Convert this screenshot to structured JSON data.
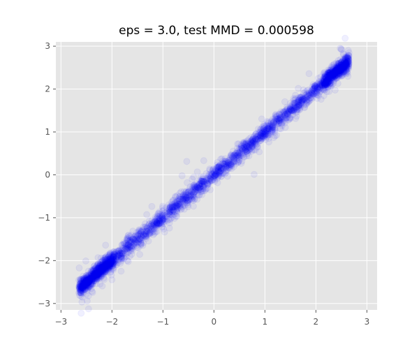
{
  "chart_data": {
    "type": "scatter",
    "title": "eps = 3.0, test MMD = 0.000598",
    "xlabel": "",
    "ylabel": "",
    "xlim": [
      -3.1,
      3.2
    ],
    "ylim": [
      -3.15,
      3.1
    ],
    "xticks": [
      -3,
      -2,
      -1,
      0,
      1,
      2,
      3
    ],
    "yticks": [
      -3,
      -2,
      -1,
      0,
      1,
      2,
      3
    ],
    "xtick_labels": [
      "−3",
      "−2",
      "−1",
      "0",
      "1",
      "2",
      "3"
    ],
    "ytick_labels": [
      "−3",
      "−2",
      "−1",
      "0",
      "1",
      "2",
      "3"
    ],
    "grid": true,
    "background_color": "#e5e5e5",
    "grid_color": "#ffffff",
    "marker_color": "#0000ff",
    "marker_alpha": 0.06,
    "series": [
      {
        "line_relation": "y ≈ x",
        "x_range": [
          -2.65,
          2.65
        ],
        "noise_sd": 0.09,
        "point_count": 3000
      }
    ]
  }
}
